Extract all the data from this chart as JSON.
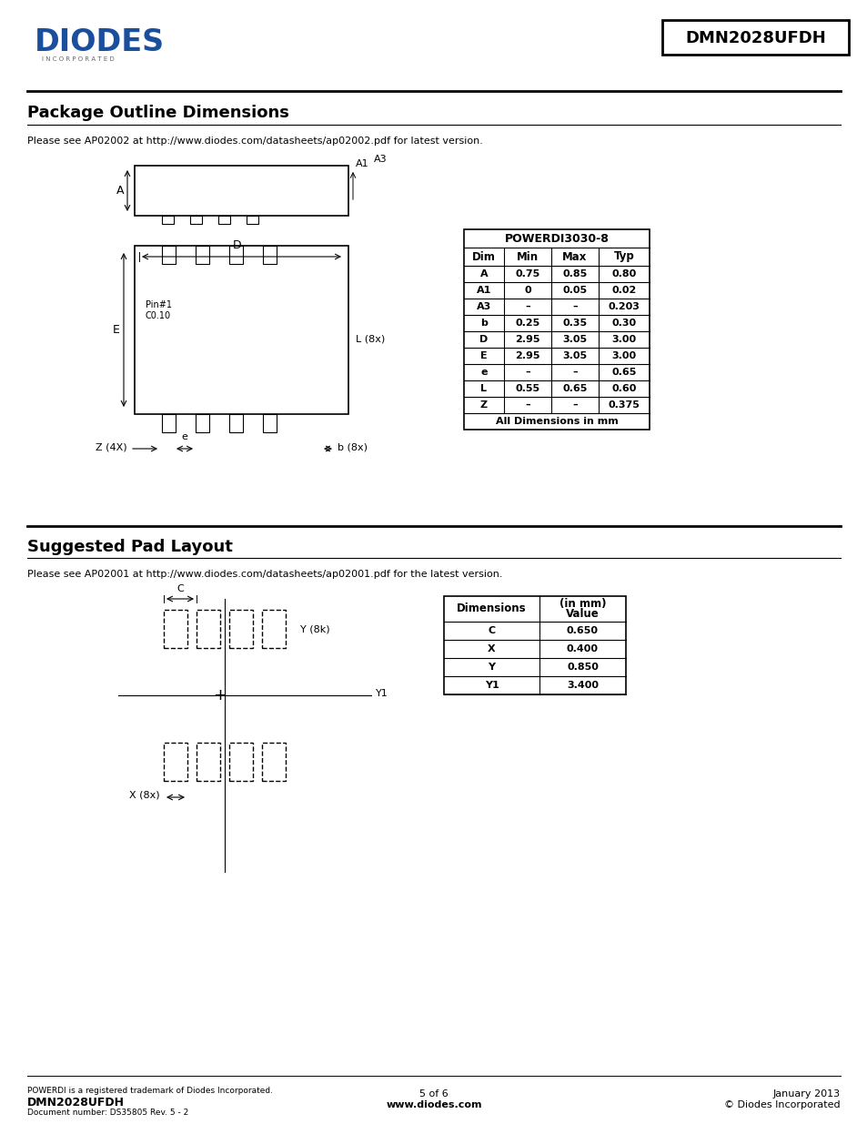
{
  "page_title": "DMN2028UFDH",
  "bg_color": "#ffffff",
  "section1_title": "Package Outline Dimensions",
  "section1_note": "Please see AP02002 at http://www.diodes.com/datasheets/ap02002.pdf for latest version.",
  "section2_title": "Suggested Pad Layout",
  "section2_note": "Please see AP02001 at http://www.diodes.com/datasheets/ap02001.pdf for the latest version.",
  "table1_title": "POWERDI3030-8",
  "table1_headers": [
    "Dim",
    "Min",
    "Max",
    "Typ"
  ],
  "table1_rows": [
    [
      "A",
      "0.75",
      "0.85",
      "0.80"
    ],
    [
      "A1",
      "0",
      "0.05",
      "0.02"
    ],
    [
      "A3",
      "–",
      "–",
      "0.203"
    ],
    [
      "b",
      "0.25",
      "0.35",
      "0.30"
    ],
    [
      "D",
      "2.95",
      "3.05",
      "3.00"
    ],
    [
      "E",
      "2.95",
      "3.05",
      "3.00"
    ],
    [
      "e",
      "–",
      "–",
      "0.65"
    ],
    [
      "L",
      "0.55",
      "0.65",
      "0.60"
    ],
    [
      "Z",
      "–",
      "–",
      "0.375"
    ]
  ],
  "table1_footer": "All Dimensions in mm",
  "table2_headers": [
    "Dimensions",
    "Value\n(in mm)"
  ],
  "table2_rows": [
    [
      "C",
      "0.650"
    ],
    [
      "X",
      "0.400"
    ],
    [
      "Y",
      "0.850"
    ],
    [
      "Y1",
      "3.400"
    ]
  ],
  "footer_left1": "POWERDI is a registered trademark of Diodes Incorporated.",
  "footer_left2": "DMN2028UFDH",
  "footer_left3": "Document number: DS35805 Rev. 5 - 2",
  "footer_center1": "5 of 6",
  "footer_center2": "www.diodes.com",
  "footer_right1": "January 2013",
  "footer_right2": "© Diodes Incorporated"
}
